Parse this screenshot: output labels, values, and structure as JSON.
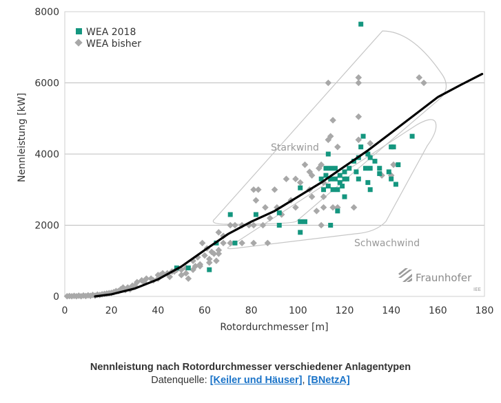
{
  "chart_data": {
    "type": "scatter",
    "xlabel": "Rotordurchmesser [m]",
    "ylabel": "Nennleistung [kW]",
    "xlim": [
      0,
      180
    ],
    "ylim": [
      0,
      8000
    ],
    "xticks": [
      0,
      20,
      40,
      60,
      80,
      100,
      120,
      140,
      160,
      180
    ],
    "yticks": [
      0,
      2000,
      4000,
      6000,
      8000
    ],
    "grid": "horizontal",
    "legend_position": "top-left",
    "series": [
      {
        "name": "WEA 2018",
        "marker": "square",
        "color": "#14967f",
        "points": [
          [
            127,
            7650
          ],
          [
            149,
            4500
          ],
          [
            128,
            4500
          ],
          [
            113,
            4000
          ],
          [
            127,
            4200
          ],
          [
            130,
            4000
          ],
          [
            141,
            4200
          ],
          [
            140,
            4200
          ],
          [
            124,
            3800
          ],
          [
            126,
            3900
          ],
          [
            131,
            3900
          ],
          [
            133,
            3800
          ],
          [
            112,
            3600
          ],
          [
            114,
            3600
          ],
          [
            116,
            3600
          ],
          [
            118,
            3400
          ],
          [
            120,
            3300
          ],
          [
            122,
            3600
          ],
          [
            125,
            3500
          ],
          [
            129,
            3600
          ],
          [
            131,
            3600
          ],
          [
            135,
            3600
          ],
          [
            139,
            3500
          ],
          [
            143,
            3700
          ],
          [
            112,
            3400
          ],
          [
            114,
            3300
          ],
          [
            116,
            3300
          ],
          [
            118,
            3200
          ],
          [
            120,
            3500
          ],
          [
            110,
            3300
          ],
          [
            113,
            3100
          ],
          [
            115,
            3000
          ],
          [
            117,
            3000
          ],
          [
            119,
            3100
          ],
          [
            121,
            3300
          ],
          [
            126,
            3300
          ],
          [
            130,
            3200
          ],
          [
            135,
            3450
          ],
          [
            140,
            3300
          ],
          [
            142,
            3150
          ],
          [
            111,
            3000
          ],
          [
            120,
            2800
          ],
          [
            117,
            2400
          ],
          [
            131,
            3000
          ],
          [
            103,
            2100
          ],
          [
            101,
            1800
          ],
          [
            101,
            2100
          ],
          [
            101,
            3050
          ],
          [
            114,
            2000
          ],
          [
            92,
            2000
          ],
          [
            92,
            2350
          ],
          [
            82,
            2300
          ],
          [
            71,
            2300
          ],
          [
            62,
            750
          ],
          [
            53,
            800
          ],
          [
            48,
            800
          ],
          [
            65,
            1500
          ],
          [
            73,
            1500
          ]
        ]
      },
      {
        "name": "WEA bisher",
        "marker": "diamond",
        "color": "#a8a8a8",
        "points": [
          [
            152,
            6150
          ],
          [
            154,
            6000
          ],
          [
            126,
            6150
          ],
          [
            126,
            6000
          ],
          [
            113,
            6000
          ],
          [
            126,
            5050
          ],
          [
            115,
            4950
          ],
          [
            113,
            4400
          ],
          [
            114,
            4500
          ],
          [
            117,
            4200
          ],
          [
            126,
            4400
          ],
          [
            131,
            4300
          ],
          [
            109,
            3600
          ],
          [
            110,
            3700
          ],
          [
            106,
            3400
          ],
          [
            105,
            3500
          ],
          [
            103,
            3700
          ],
          [
            111,
            3200
          ],
          [
            105,
            3000
          ],
          [
            101,
            3200
          ],
          [
            99,
            3300
          ],
          [
            95,
            3300
          ],
          [
            90,
            3000
          ],
          [
            81,
            3000
          ],
          [
            83,
            3000
          ],
          [
            82,
            2700
          ],
          [
            86,
            2500
          ],
          [
            88,
            2200
          ],
          [
            93,
            2300
          ],
          [
            91,
            2500
          ],
          [
            97,
            2700
          ],
          [
            99,
            2500
          ],
          [
            106,
            2800
          ],
          [
            108,
            2400
          ],
          [
            110,
            2000
          ],
          [
            111,
            2500
          ],
          [
            115,
            2500
          ],
          [
            117,
            2500
          ],
          [
            111,
            2800
          ],
          [
            141,
            3700
          ],
          [
            136,
            3400
          ],
          [
            140,
            3400
          ],
          [
            124,
            2500
          ],
          [
            85,
            2000
          ],
          [
            81,
            2000
          ],
          [
            79,
            2000
          ],
          [
            76,
            2000
          ],
          [
            73,
            2000
          ],
          [
            71,
            2000
          ],
          [
            66,
            1800
          ],
          [
            68,
            1700
          ],
          [
            71,
            1500
          ],
          [
            81,
            1500
          ],
          [
            87,
            1500
          ],
          [
            76,
            1500
          ],
          [
            59,
            1500
          ],
          [
            61,
            1350
          ],
          [
            63,
            1250
          ],
          [
            64,
            1200
          ],
          [
            66,
            1300
          ],
          [
            68,
            1500
          ],
          [
            60,
            1150
          ],
          [
            57,
            1100
          ],
          [
            55,
            1000
          ],
          [
            58,
            900
          ],
          [
            56,
            850
          ],
          [
            52,
            800
          ],
          [
            50,
            750
          ],
          [
            48,
            750
          ],
          [
            46,
            700
          ],
          [
            44,
            650
          ],
          [
            41,
            600
          ],
          [
            40,
            600
          ],
          [
            37,
            500
          ],
          [
            35,
            500
          ],
          [
            33,
            450
          ],
          [
            31,
            400
          ],
          [
            29,
            300
          ],
          [
            27,
            250
          ],
          [
            25,
            250
          ],
          [
            24,
            200
          ],
          [
            22,
            150
          ],
          [
            20,
            100
          ],
          [
            18,
            80
          ],
          [
            16,
            60
          ],
          [
            14,
            50
          ],
          [
            12,
            40
          ],
          [
            10,
            30
          ],
          [
            8,
            25
          ],
          [
            6,
            20
          ],
          [
            4,
            15
          ],
          [
            2,
            10
          ],
          [
            1,
            5
          ],
          [
            53,
            500
          ],
          [
            50,
            600
          ],
          [
            45,
            550
          ],
          [
            40,
            500
          ],
          [
            38,
            450
          ],
          [
            34,
            400
          ],
          [
            30,
            300
          ],
          [
            28,
            200
          ],
          [
            26,
            180
          ],
          [
            23,
            150
          ],
          [
            21,
            120
          ],
          [
            19,
            90
          ],
          [
            17,
            70
          ],
          [
            15,
            40
          ],
          [
            13,
            20
          ],
          [
            11,
            15
          ],
          [
            9,
            10
          ],
          [
            7,
            5
          ],
          [
            5,
            5
          ],
          [
            3,
            5
          ],
          [
            42,
            650
          ],
          [
            47,
            700
          ],
          [
            52,
            650
          ],
          [
            55,
            750
          ],
          [
            58,
            850
          ],
          [
            62,
            1050
          ],
          [
            62,
            950
          ],
          [
            65,
            1000
          ],
          [
            66,
            1200
          ]
        ]
      },
      {
        "name": "",
        "type": "line",
        "color": "#000000",
        "points": [
          [
            13,
            0
          ],
          [
            20,
            60
          ],
          [
            30,
            220
          ],
          [
            40,
            480
          ],
          [
            50,
            840
          ],
          [
            60,
            1300
          ],
          [
            70,
            1750
          ],
          [
            80,
            2100
          ],
          [
            90,
            2400
          ],
          [
            100,
            2800
          ],
          [
            110,
            3200
          ],
          [
            120,
            3650
          ],
          [
            130,
            4100
          ],
          [
            140,
            4600
          ],
          [
            150,
            5100
          ],
          [
            160,
            5600
          ],
          [
            170,
            5950
          ],
          [
            179,
            6250
          ]
        ]
      }
    ],
    "annotations": [
      "Starkwind",
      "Schwachwind"
    ],
    "logo": {
      "name": "Fraunhofer",
      "sub": "IEE"
    }
  },
  "caption": {
    "title": "Nennleistung nach Rotordurchmesser verschiedener Anlagentypen",
    "source_prefix": "Datenquelle: ",
    "source_link_1": "[Keiler und Häuser]",
    "separator": ", ",
    "source_link_2": "[BNetzA]"
  }
}
